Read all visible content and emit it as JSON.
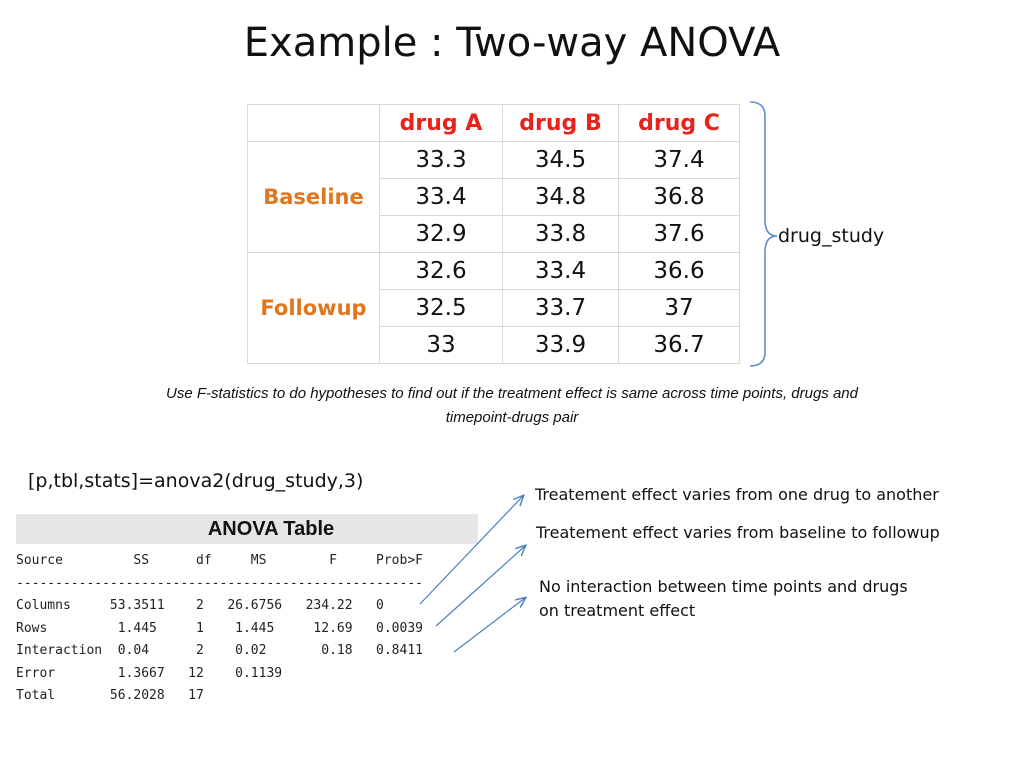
{
  "title": "Example : Two-way ANOVA",
  "table": {
    "columns": [
      "drug A",
      "drug B",
      "drug C"
    ],
    "groups": [
      {
        "label": "Baseline",
        "rows": [
          [
            "33.3",
            "34.5",
            "37.4"
          ],
          [
            "33.4",
            "34.8",
            "36.8"
          ],
          [
            "32.9",
            "33.8",
            "37.6"
          ]
        ]
      },
      {
        "label": "Followup",
        "rows": [
          [
            "32.6",
            "33.4",
            "36.6"
          ],
          [
            "32.5",
            "33.7",
            "37"
          ],
          [
            "33",
            "33.9",
            "36.7"
          ]
        ]
      }
    ]
  },
  "bracket_label": "drug_study",
  "note_line1": "Use F-statistics to do hypotheses to find out if the treatment effect is same across time points, drugs and",
  "note_line2": "timepoint-drugs pair",
  "command": "[p,tbl,stats]=anova2(drug_study,3)",
  "anova_table": {
    "header": "ANOVA Table",
    "text": "Source         SS      df     MS        F     Prob>F\n----------------------------------------------------\nColumns     53.3511    2   26.6756   234.22   0\nRows         1.445     1    1.445     12.69   0.0039\nInteraction  0.04      2    0.02       0.18   0.8411\nError        1.3667   12    0.1139\nTotal       56.2028   17"
  },
  "annotations": {
    "a1": "Treatement effect varies from one drug to another",
    "a2": "Treatement effect varies from baseline to followup",
    "a3_line1": "No interaction between time points and drugs",
    "a3_line2": "on treatment effect"
  }
}
